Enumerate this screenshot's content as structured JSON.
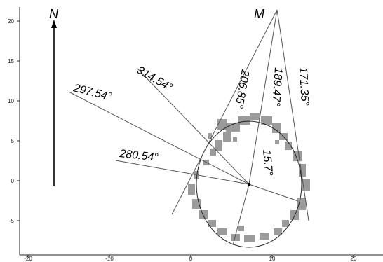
{
  "x_ticks": [
    "-20",
    "-10",
    "0",
    "10",
    "20"
  ],
  "y_ticks": [
    "20",
    "15",
    "10",
    "5",
    "0",
    "-5"
  ],
  "north_label": "N",
  "point_label": "M",
  "angles": {
    "a1": "314.54°",
    "a2": "297.54°",
    "a3": "280.54°",
    "a4": "206.85°",
    "a5": "189.47°",
    "a6": "171.35°",
    "a7": "15.7°"
  },
  "colors": {
    "scatter": "#8a8a8a",
    "lines": "#555555",
    "text": "#000000"
  }
}
